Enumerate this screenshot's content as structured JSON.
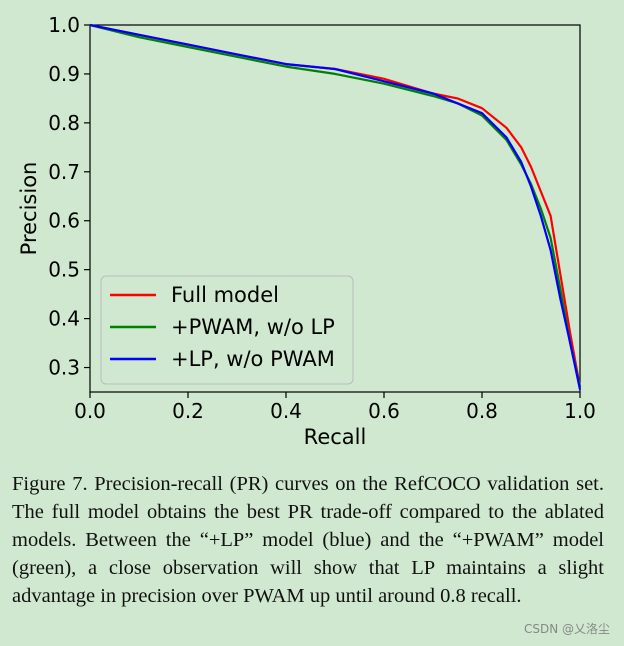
{
  "chart_data": {
    "type": "line",
    "title": "",
    "xlabel": "Recall",
    "ylabel": "Precision",
    "xlim": [
      0.0,
      1.0
    ],
    "ylim": [
      0.25,
      1.0
    ],
    "x_ticks": [
      "0.0",
      "0.2",
      "0.4",
      "0.6",
      "0.8",
      "1.0"
    ],
    "y_ticks": [
      "0.3",
      "0.4",
      "0.5",
      "0.6",
      "0.7",
      "0.8",
      "0.9",
      "1.0"
    ],
    "grid": false,
    "legend_position": "lower-left",
    "series": [
      {
        "name": "Full model",
        "color": "#ff0000",
        "x": [
          0.0,
          0.1,
          0.2,
          0.3,
          0.4,
          0.5,
          0.6,
          0.7,
          0.75,
          0.8,
          0.85,
          0.88,
          0.9,
          0.92,
          0.94,
          0.96,
          0.98,
          1.0
        ],
        "y": [
          1.0,
          0.98,
          0.96,
          0.94,
          0.92,
          0.91,
          0.89,
          0.86,
          0.85,
          0.83,
          0.79,
          0.75,
          0.71,
          0.66,
          0.61,
          0.49,
          0.37,
          0.26
        ]
      },
      {
        "name": "+PWAM, w/o LP",
        "color": "#008000",
        "x": [
          0.0,
          0.1,
          0.2,
          0.3,
          0.4,
          0.5,
          0.6,
          0.7,
          0.75,
          0.8,
          0.85,
          0.88,
          0.9,
          0.92,
          0.94,
          0.96,
          0.98,
          1.0
        ],
        "y": [
          1.0,
          0.975,
          0.955,
          0.935,
          0.915,
          0.9,
          0.88,
          0.855,
          0.84,
          0.815,
          0.765,
          0.715,
          0.675,
          0.625,
          0.565,
          0.46,
          0.35,
          0.26
        ]
      },
      {
        "name": "+LP, w/o PWAM",
        "color": "#0000ff",
        "x": [
          0.0,
          0.1,
          0.2,
          0.3,
          0.4,
          0.5,
          0.6,
          0.7,
          0.75,
          0.8,
          0.85,
          0.88,
          0.9,
          0.92,
          0.94,
          0.96,
          0.98,
          1.0
        ],
        "y": [
          1.0,
          0.98,
          0.96,
          0.94,
          0.92,
          0.91,
          0.885,
          0.86,
          0.84,
          0.82,
          0.77,
          0.72,
          0.67,
          0.61,
          0.54,
          0.44,
          0.35,
          0.255
        ]
      }
    ]
  },
  "caption": "Figure 7.  Precision-recall (PR) curves on the RefCOCO validation set.  The full model obtains the best PR trade-off compared to the ablated models.  Between the “+LP” model (blue) and the “+PWAM” model (green), a close observation will show that LP maintains a slight advantage in precision over PWAM up until around 0.8 recall.",
  "watermark": "CSDN @乂洛尘"
}
